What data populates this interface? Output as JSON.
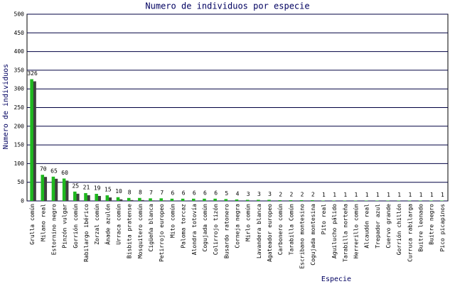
{
  "chart_data": {
    "type": "bar",
    "title": "Numero de individuos por especie",
    "y_label": "Numero de individuos",
    "x_label": "Especie",
    "categories": [
      "Grulla común",
      "Milano real",
      "Estornino negro",
      "Pinzón vulgar",
      "Gorrión común",
      "Rabilargo ibérico",
      "Zorzal común",
      "Ánade azulón",
      "Urraca común",
      "Bisbita pratense",
      "Mosquitero común",
      "Cigüeña blanca",
      "Petirrojo europeo",
      "Mito común",
      "Paloma torcaz",
      "Alondra totovía",
      "Cogujada común",
      "Colirrojo tizón",
      "Busardo ratonero",
      "Corneja negra",
      "Mirlo común",
      "Lavandera blanca",
      "Agateador europeo",
      "Carbonero común",
      "Tarabilla Común",
      "Escribano montesino",
      "Cogujada montesina",
      "Pito real",
      "Aguilucho pálido",
      "Tarabilla norteña",
      "Herrerillo común",
      "Alcaudón real",
      "Trepador azul",
      "Cuervo grande",
      "Gorrión chillón",
      "Curruca rabilarga",
      "Buitre leonado",
      "Buitre negro",
      "Pico picapinos"
    ],
    "values": [
      326,
      70,
      65,
      60,
      25,
      21,
      19,
      15,
      10,
      8,
      8,
      7,
      7,
      6,
      6,
      6,
      6,
      6,
      5,
      4,
      3,
      3,
      3,
      2,
      2,
      2,
      2,
      1,
      1,
      1,
      1,
      1,
      1,
      1,
      1,
      1,
      1,
      1,
      1
    ],
    "color": "#1fb81f",
    "shadow_color": "#404040",
    "ylim": [
      0,
      500
    ],
    "yticks": [
      0,
      50,
      100,
      150,
      200,
      250,
      300,
      350,
      400,
      450,
      500
    ],
    "grid": true
  }
}
